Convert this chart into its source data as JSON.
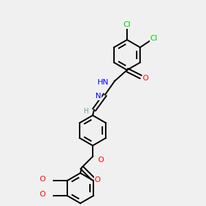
{
  "background_color": "#f0f0f0",
  "bond_color": "#000000",
  "atom_colors": {
    "C": "#000000",
    "H": "#6a9a9a",
    "N": "#0000ff",
    "O": "#ff0000",
    "Cl": "#00cc00"
  },
  "font_size": 7,
  "line_width": 1.5
}
